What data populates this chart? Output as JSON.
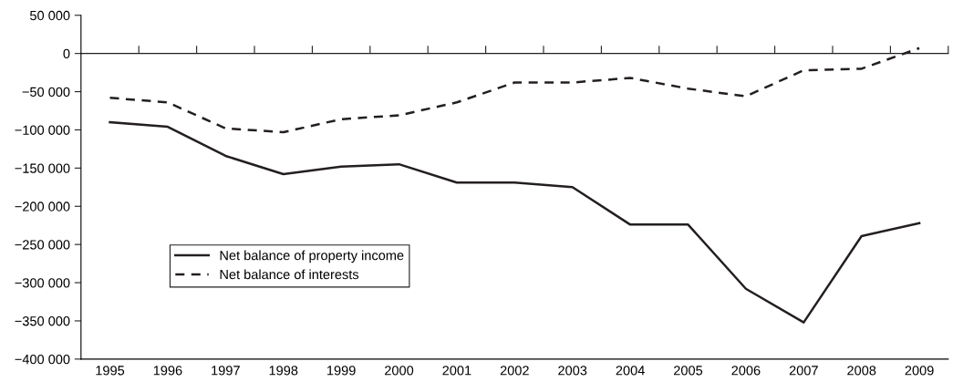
{
  "chart_data": {
    "type": "line",
    "categories": [
      "1995",
      "1996",
      "1997",
      "1998",
      "1999",
      "2000",
      "2001",
      "2002",
      "2003",
      "2004",
      "2005",
      "2006",
      "2007",
      "2008",
      "2009"
    ],
    "series": [
      {
        "name": "Net balance of property income",
        "color": "#231f20",
        "line_style": "solid",
        "values": [
          -90000,
          -96000,
          -134000,
          -158000,
          -148000,
          -145000,
          -169000,
          -169000,
          -175000,
          -224000,
          -224000,
          -308000,
          -352000,
          -239000,
          -222000
        ]
      },
      {
        "name": "Net balance of interests",
        "color": "#231f20",
        "line_style": "dashed",
        "values": [
          -58000,
          -64000,
          -98000,
          -103000,
          -86000,
          -81000,
          -64000,
          -38000,
          -38000,
          -32000,
          -46000,
          -56000,
          -22000,
          -20000,
          7000
        ]
      }
    ],
    "ylim": [
      -400000,
      50000
    ],
    "yticks": [
      {
        "value": 50000,
        "label": "50 000"
      },
      0,
      {
        "value": -50000,
        "label": "−50 000"
      },
      {
        "value": -100000,
        "label": "−100 000"
      },
      {
        "value": -150000,
        "label": "−150 000"
      },
      {
        "value": -200000,
        "label": "−200 000"
      },
      {
        "value": -250000,
        "label": "−250 000"
      },
      {
        "value": -300000,
        "label": "−300 000"
      },
      {
        "value": -350000,
        "label": "−350 000"
      },
      {
        "value": -400000,
        "label": "−400 000"
      }
    ],
    "legend": "bottom left",
    "marker": "none"
  }
}
